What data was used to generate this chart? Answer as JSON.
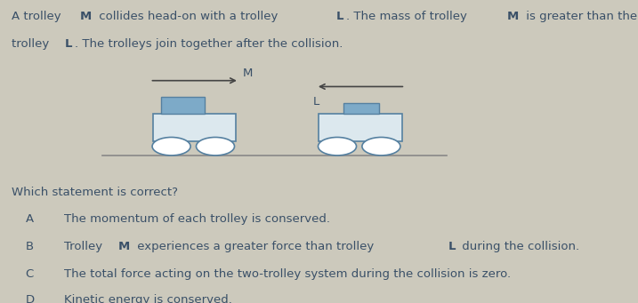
{
  "bg_color": "#ccc9bc",
  "text_color": "#3a5068",
  "question": "Which statement is correct?",
  "options": [
    {
      "label": "A",
      "text": "The momentum of each trolley is conserved.",
      "bold_indices": []
    },
    {
      "label": "B",
      "text_parts": [
        [
          "Trolley ",
          false
        ],
        [
          "M",
          true
        ],
        [
          " experiences a greater force than trolley ",
          false
        ],
        [
          "L",
          true
        ],
        [
          " during the collision.",
          false
        ]
      ]
    },
    {
      "label": "C",
      "text": "The total force acting on the two-trolley system during the collision is zero.",
      "bold_indices": []
    },
    {
      "label": "D",
      "text": "Kinetic energy is conserved.",
      "bold_indices": []
    }
  ],
  "trolley_body_color": "#dce8ee",
  "trolley_body_edge": "#5580a0",
  "trolley_load_color": "#7daac8",
  "trolley_load_edge": "#5580a0",
  "wheel_color": "#ffffff",
  "wheel_edge": "#5580a0",
  "arrow_color": "#444444",
  "line_color": "#888888",
  "font_size": 9.5,
  "label_indent": 0.04,
  "text_indent": 0.1
}
